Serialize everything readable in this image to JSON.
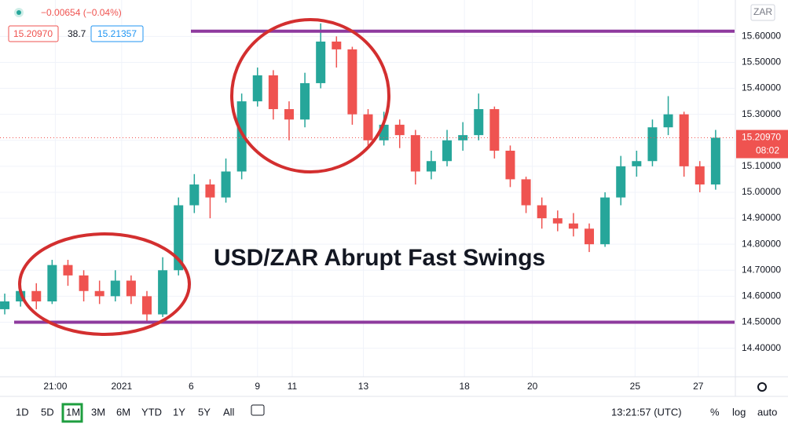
{
  "chart_data": {
    "type": "candlestick",
    "header": {
      "change": "−0.00654 (−0.04%)",
      "bid": "15.20970",
      "spread": "38.7",
      "ask": "15.21357"
    },
    "currency": "ZAR",
    "annotation": "USD/ZAR Abrupt Fast Swings",
    "open": [
      14.55,
      14.58,
      14.62,
      14.58,
      14.72,
      14.68,
      14.62,
      14.6,
      14.66,
      14.6,
      14.53,
      14.7,
      14.95,
      15.03,
      14.98,
      15.08,
      15.35,
      15.45,
      15.32,
      15.28,
      15.42,
      15.58,
      15.55,
      15.3,
      15.2,
      15.26,
      15.22,
      15.08,
      15.12,
      15.2,
      15.22,
      15.32,
      15.16,
      15.05,
      14.95,
      14.9,
      14.88,
      14.86,
      14.8,
      14.98,
      15.1,
      15.12,
      15.25,
      15.3,
      15.1,
      15.03
    ],
    "high": [
      14.61,
      14.66,
      14.65,
      14.74,
      14.74,
      14.7,
      14.66,
      14.7,
      14.68,
      14.62,
      14.75,
      14.98,
      15.07,
      15.05,
      15.13,
      15.38,
      15.48,
      15.47,
      15.35,
      15.46,
      15.65,
      15.6,
      15.56,
      15.32,
      15.31,
      15.28,
      15.24,
      15.16,
      15.24,
      15.27,
      15.38,
      15.33,
      15.18,
      15.06,
      14.98,
      14.93,
      14.92,
      14.88,
      15.0,
      15.14,
      15.16,
      15.28,
      15.37,
      15.31,
      15.12,
      15.24
    ],
    "low": [
      14.53,
      14.56,
      14.55,
      14.57,
      14.64,
      14.58,
      14.57,
      14.58,
      14.57,
      14.5,
      14.52,
      14.68,
      14.92,
      14.9,
      14.96,
      15.05,
      15.33,
      15.28,
      15.2,
      15.25,
      15.4,
      15.48,
      15.26,
      15.17,
      15.18,
      15.17,
      15.03,
      15.05,
      15.1,
      15.16,
      15.2,
      15.13,
      15.02,
      14.92,
      14.86,
      14.85,
      14.83,
      14.77,
      14.79,
      14.95,
      15.06,
      15.1,
      15.22,
      15.06,
      15.0,
      15.01
    ],
    "close": [
      14.58,
      14.62,
      14.58,
      14.72,
      14.68,
      14.62,
      14.6,
      14.66,
      14.6,
      14.53,
      14.7,
      14.95,
      15.03,
      14.98,
      15.08,
      15.35,
      15.45,
      15.32,
      15.28,
      15.42,
      15.58,
      15.55,
      15.3,
      15.2,
      15.26,
      15.22,
      15.08,
      15.12,
      15.2,
      15.22,
      15.32,
      15.16,
      15.05,
      14.95,
      14.9,
      14.88,
      14.86,
      14.8,
      14.98,
      15.1,
      15.12,
      15.25,
      15.3,
      15.1,
      15.03,
      15.21
    ],
    "up_color": "#26a69a",
    "down_color": "#ef5350",
    "xlim": [
      -0.3,
      46.2
    ],
    "xticks": [
      {
        "value": 3.2,
        "label": "21:00"
      },
      {
        "value": 7.4,
        "label": "2021"
      },
      {
        "value": 11.8,
        "label": "6"
      },
      {
        "value": 16.0,
        "label": "9"
      },
      {
        "value": 18.2,
        "label": "11"
      },
      {
        "value": 22.7,
        "label": "13"
      },
      {
        "value": 29.1,
        "label": "18"
      },
      {
        "value": 33.4,
        "label": "20"
      },
      {
        "value": 39.9,
        "label": "25"
      },
      {
        "value": 43.9,
        "label": "27"
      }
    ],
    "ylim": [
      14.29,
      15.74
    ],
    "yticks": [
      {
        "value": 14.4,
        "label": "14.40000"
      },
      {
        "value": 14.5,
        "label": "14.50000"
      },
      {
        "value": 14.6,
        "label": "14.60000"
      },
      {
        "value": 14.7,
        "label": "14.70000"
      },
      {
        "value": 14.8,
        "label": "14.80000"
      },
      {
        "value": 14.9,
        "label": "14.90000"
      },
      {
        "value": 15.0,
        "label": "15.00000"
      },
      {
        "value": 15.1,
        "label": "15.10000"
      },
      {
        "value": 15.2,
        "label": "15.20000"
      },
      {
        "value": 15.3,
        "label": "15.30000"
      },
      {
        "value": 15.4,
        "label": "15.40000"
      },
      {
        "value": 15.5,
        "label": "15.50000"
      },
      {
        "value": 15.6,
        "label": "15.60000"
      }
    ],
    "grid": true,
    "hlines": [
      15.62,
      14.5
    ],
    "hline_color": "#8e3a9e",
    "last_price": {
      "value": 15.2097,
      "label": "15.20970"
    },
    "countdown": "08:02"
  },
  "toolbar": {
    "ranges": [
      "1D",
      "5D",
      "1M",
      "3M",
      "6M",
      "YTD",
      "1Y",
      "5Y",
      "All"
    ],
    "active": 2,
    "clock": "13:21:57 (UTC)",
    "percent": "%",
    "log": "log",
    "auto": "auto"
  }
}
